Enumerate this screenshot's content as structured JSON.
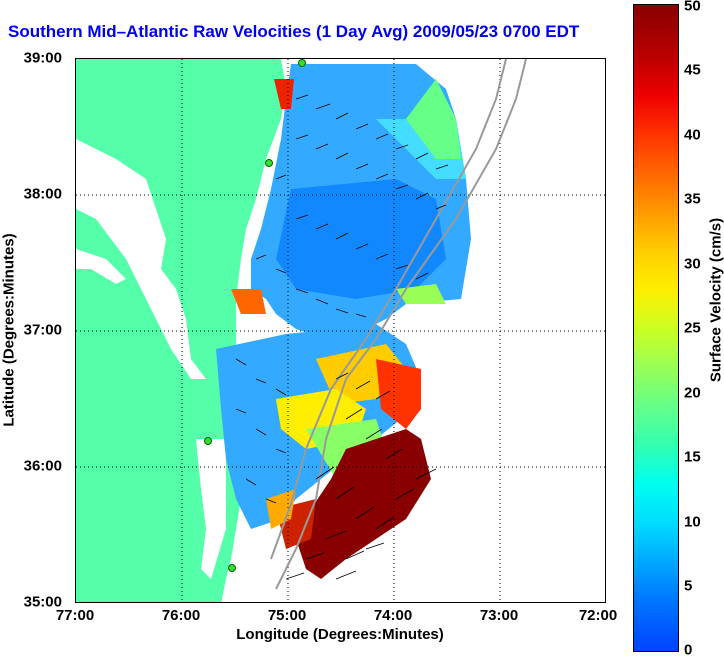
{
  "title": "Southern Mid-Atlantic Raw Velocities (1 Day Avg) 2009/05/23 0700 EDT",
  "title_display": "Southern Mid–Atlantic Raw Velocities (1 Day Avg) 2009/05/23 0700 EDT",
  "colors": {
    "title": "#0000ee",
    "land": "#55ffaa",
    "arrow": "#000000",
    "coast_path": "#999999"
  },
  "x_axis": {
    "label": "Longitude (Degrees:Minutes)",
    "ticks": [
      "77:00",
      "76:00",
      "75:00",
      "74:00",
      "73:00",
      "72:00"
    ]
  },
  "y_axis": {
    "label": "Latitude (Degrees:Minutes)",
    "ticks": [
      "39:00",
      "38:00",
      "37:00",
      "36:00",
      "35:00"
    ]
  },
  "colorbar": {
    "label": "Surface Velocity (cm/s)",
    "ticks": [
      "50",
      "45",
      "40",
      "35",
      "30",
      "25",
      "20",
      "15",
      "10",
      "5",
      "0"
    ],
    "range": [
      0,
      50
    ]
  },
  "grid": "dotted"
}
